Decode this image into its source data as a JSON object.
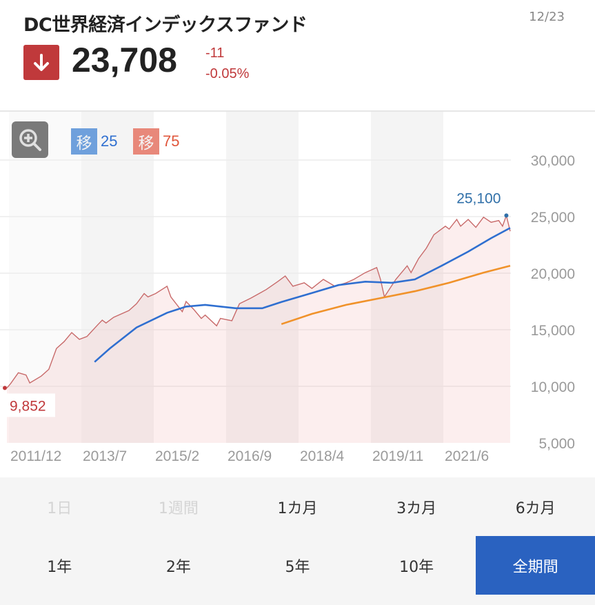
{
  "header": {
    "title": "DC世界経済インデックスファンド",
    "date": "12/23",
    "price": "23,708",
    "change": "-11",
    "change_pct": "-0.05%",
    "direction_icon": "arrow-down-icon"
  },
  "colors": {
    "down": "#c0393b",
    "ma25": "#2f6fd0",
    "ma75": "#f0922a",
    "price_line": "#c86a6a",
    "selected": "#2a62c0"
  },
  "legend": [
    {
      "badge": "移",
      "label": "25",
      "color": "#2f6fd0",
      "badge_color": "#6fa0dc"
    },
    {
      "badge": "移",
      "label": "75",
      "color": "#e0553a",
      "badge_color": "#e8887a"
    }
  ],
  "chart_data": {
    "type": "line",
    "xlim": [
      "2011/12",
      "2022/12"
    ],
    "ylim": [
      5000,
      30000
    ],
    "y_ticks": [
      "30,000",
      "25,000",
      "20,000",
      "15,000",
      "10,000",
      "5,000"
    ],
    "x_ticks": [
      "2011/12",
      "2013/7",
      "2015/2",
      "2016/9",
      "2018/4",
      "2019/11",
      "2021/6"
    ],
    "annotations": {
      "max": "25,100",
      "min": "9,852"
    },
    "series": [
      {
        "key": "price",
        "points": [
          [
            "2011/12",
            9852
          ],
          [
            "2012/1",
            10250
          ],
          [
            "2012/3",
            11200
          ],
          [
            "2012/5",
            11000
          ],
          [
            "2012/6",
            10300
          ],
          [
            "2012/9",
            10900
          ],
          [
            "2012/11",
            11500
          ],
          [
            "2013/1",
            13350
          ],
          [
            "2013/3",
            13950
          ],
          [
            "2013/5",
            14750
          ],
          [
            "2013/7",
            14150
          ],
          [
            "2013/9",
            14400
          ],
          [
            "2013/12",
            15500
          ],
          [
            "2014/1",
            15850
          ],
          [
            "2014/2",
            15600
          ],
          [
            "2014/4",
            16100
          ],
          [
            "2014/8",
            16700
          ],
          [
            "2014/10",
            17300
          ],
          [
            "2014/12",
            18200
          ],
          [
            "2015/1",
            17900
          ],
          [
            "2015/3",
            18200
          ],
          [
            "2015/6",
            18850
          ],
          [
            "2015/7",
            17900
          ],
          [
            "2015/10",
            16600
          ],
          [
            "2015/11",
            17500
          ],
          [
            "2016/1",
            16800
          ],
          [
            "2016/3",
            16000
          ],
          [
            "2016/4",
            16300
          ],
          [
            "2016/7",
            15350
          ],
          [
            "2016/8",
            16000
          ],
          [
            "2016/11",
            15800
          ],
          [
            "2017/1",
            17300
          ],
          [
            "2017/4",
            17800
          ],
          [
            "2017/8",
            18550
          ],
          [
            "2017/11",
            19250
          ],
          [
            "2018/1",
            19750
          ],
          [
            "2018/3",
            18850
          ],
          [
            "2018/6",
            19150
          ],
          [
            "2018/8",
            18650
          ],
          [
            "2018/11",
            19450
          ],
          [
            "2019/2",
            18850
          ],
          [
            "2019/5",
            19150
          ],
          [
            "2019/7",
            19450
          ],
          [
            "2019/10",
            20050
          ],
          [
            "2020/1",
            20500
          ],
          [
            "2020/2",
            19450
          ],
          [
            "2020/3",
            17900
          ],
          [
            "2020/6",
            19450
          ],
          [
            "2020/9",
            20650
          ],
          [
            "2020/10",
            20050
          ],
          [
            "2020/12",
            21300
          ],
          [
            "2021/2",
            22200
          ],
          [
            "2021/4",
            23400
          ],
          [
            "2021/7",
            24150
          ],
          [
            "2021/8",
            23900
          ],
          [
            "2021/10",
            24750
          ],
          [
            "2021/11",
            24150
          ],
          [
            "2022/1",
            24750
          ],
          [
            "2022/3",
            24050
          ],
          [
            "2022/5",
            24950
          ],
          [
            "2022/7",
            24500
          ],
          [
            "2022/9",
            24650
          ],
          [
            "2022/10",
            24150
          ],
          [
            "2022/11",
            25100
          ],
          [
            "2022/12",
            23708
          ]
        ]
      },
      {
        "key": "ma25",
        "name": "25",
        "points": [
          [
            "2013/11",
            12150
          ],
          [
            "2014/3",
            13350
          ],
          [
            "2014/10",
            15200
          ],
          [
            "2015/6",
            16500
          ],
          [
            "2015/11",
            17050
          ],
          [
            "2016/4",
            17200
          ],
          [
            "2016/12",
            16900
          ],
          [
            "2017/7",
            16900
          ],
          [
            "2017/12",
            17450
          ],
          [
            "2018/8",
            18250
          ],
          [
            "2019/3",
            18950
          ],
          [
            "2019/10",
            19250
          ],
          [
            "2020/5",
            19150
          ],
          [
            "2020/11",
            19450
          ],
          [
            "2021/6",
            20650
          ],
          [
            "2022/1",
            21900
          ],
          [
            "2022/7",
            23100
          ],
          [
            "2022/12",
            24000
          ]
        ]
      },
      {
        "key": "ma75",
        "name": "75",
        "points": [
          [
            "2017/12",
            15500
          ],
          [
            "2018/8",
            16400
          ],
          [
            "2019/5",
            17200
          ],
          [
            "2020/2",
            17800
          ],
          [
            "2020/11",
            18400
          ],
          [
            "2021/8",
            19150
          ],
          [
            "2022/5",
            20050
          ],
          [
            "2022/12",
            20650
          ]
        ]
      }
    ]
  },
  "ranges": [
    "1日",
    "1週間",
    "1カ月",
    "3カ月",
    "6カ月",
    "1年",
    "2年",
    "5年",
    "10年",
    "全期間"
  ],
  "range_disabled": [
    0,
    1
  ],
  "range_selected": 9
}
